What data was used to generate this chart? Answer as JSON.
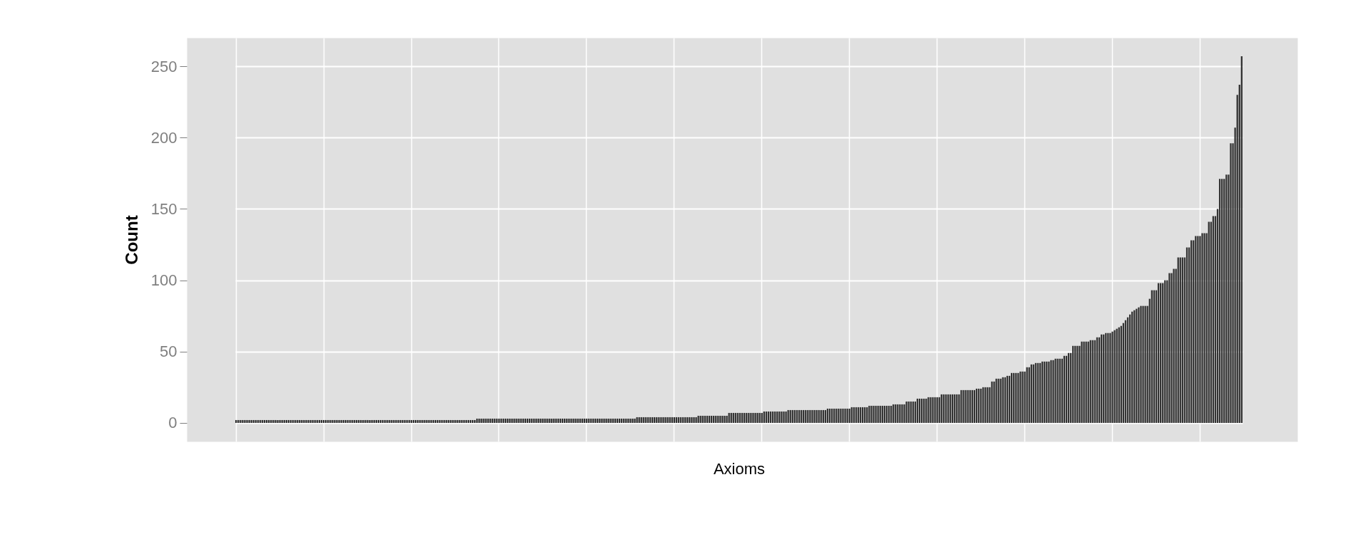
{
  "chart_data": {
    "type": "bar",
    "xlabel": "Axioms",
    "ylabel": "Count",
    "color": "#333333",
    "ylim": [
      -13,
      270
    ],
    "yticks": [
      0,
      50,
      100,
      150,
      200,
      250
    ],
    "grid": true,
    "tick_labels": "y",
    "categories": [
      null,
      null,
      null,
      null,
      null,
      null,
      null,
      null,
      null,
      null,
      null,
      null,
      null,
      null,
      null,
      null,
      null,
      null,
      null,
      null,
      null,
      null,
      null,
      null,
      null,
      null,
      null,
      null,
      null,
      null,
      null,
      null,
      null,
      null,
      null,
      null,
      null,
      null,
      null,
      null,
      null,
      null,
      null,
      null,
      null,
      null,
      null,
      null,
      null,
      null,
      null,
      null,
      null,
      null,
      null,
      null,
      null,
      null,
      null,
      null,
      null,
      null,
      null,
      null,
      null,
      null,
      null,
      null,
      null,
      null,
      null,
      null,
      null,
      null,
      null,
      null,
      null,
      null,
      null,
      null,
      null,
      null,
      null,
      null,
      null,
      null,
      null,
      null,
      null,
      null,
      null,
      null,
      null,
      null,
      null,
      null,
      null,
      null,
      null,
      null,
      null,
      null,
      null,
      null,
      null,
      null,
      null,
      null,
      null,
      null,
      null,
      null,
      null,
      null,
      null,
      null,
      null,
      null,
      null,
      null,
      null,
      null,
      null,
      null,
      null,
      null,
      null,
      null,
      null,
      null,
      null,
      null,
      null,
      null,
      null,
      null,
      null,
      null,
      null,
      null,
      null,
      null,
      null,
      null,
      null,
      null,
      null,
      null,
      null,
      null,
      null,
      null,
      null,
      null,
      null,
      null,
      null,
      null,
      null,
      null,
      null,
      null,
      null,
      null,
      null,
      null,
      null,
      null,
      null,
      null,
      null,
      null,
      null,
      null,
      null,
      null,
      null,
      null,
      null,
      null,
      null,
      null,
      null,
      null,
      null,
      null,
      null,
      null,
      null,
      null,
      null,
      null,
      null,
      null,
      null,
      null,
      null,
      null,
      null,
      null,
      null,
      null,
      null,
      null,
      null,
      null,
      null,
      null,
      null,
      null,
      null,
      null,
      null,
      null,
      null,
      null,
      null,
      null,
      null,
      null,
      null,
      null,
      null,
      null,
      null,
      null,
      null,
      null,
      null,
      null,
      null,
      null,
      null,
      null,
      null,
      null,
      null,
      null,
      null,
      null,
      null,
      null,
      null,
      null,
      null,
      null,
      null,
      null,
      null,
      null,
      null,
      null,
      null,
      null,
      null,
      null,
      null,
      null,
      null,
      null,
      null,
      null,
      null,
      null,
      null,
      null,
      null,
      null,
      null,
      null,
      null,
      null,
      null,
      null,
      null,
      null,
      null,
      null,
      null,
      null,
      null,
      null,
      null,
      null,
      null,
      null,
      null,
      null,
      null,
      null,
      null,
      null,
      null,
      null,
      null,
      null,
      null,
      null,
      null,
      null,
      null,
      null,
      null,
      null,
      null,
      null,
      null,
      null,
      null,
      null,
      null,
      null,
      null,
      null,
      null,
      null,
      null,
      null,
      null,
      null,
      null,
      null,
      null,
      null,
      null,
      null,
      null,
      null,
      null,
      null,
      null,
      null,
      null,
      null,
      null,
      null,
      null,
      null,
      null,
      null,
      null,
      null,
      null,
      null,
      null,
      null,
      null,
      null,
      null,
      null,
      null,
      null,
      null,
      null,
      null,
      null,
      null,
      null,
      null,
      null,
      null,
      null,
      null,
      null,
      null,
      null,
      null,
      null,
      null,
      null,
      null,
      null,
      null,
      null,
      null,
      null,
      null,
      null,
      null,
      null,
      null,
      null,
      null,
      null,
      null,
      null,
      null,
      null,
      null,
      null,
      null,
      null,
      null,
      null,
      null,
      null,
      null,
      null,
      null,
      null,
      null,
      null,
      null,
      null,
      null,
      null,
      null,
      null,
      null,
      null,
      null,
      null,
      null,
      null,
      null,
      null,
      null,
      null,
      null,
      null,
      null,
      null,
      null,
      null,
      null,
      null,
      null,
      null,
      null,
      null,
      null,
      null,
      null,
      null,
      null,
      null,
      null,
      null,
      null,
      null,
      null,
      null,
      null,
      null,
      null,
      null,
      null,
      null,
      null,
      null,
      null,
      null,
      null,
      null,
      null,
      null,
      null,
      null,
      null,
      null
    ],
    "values": [
      2,
      2,
      2,
      2,
      2,
      2,
      2,
      2,
      2,
      2,
      2,
      2,
      2,
      2,
      2,
      2,
      2,
      2,
      2,
      2,
      2,
      2,
      2,
      2,
      2,
      2,
      2,
      2,
      2,
      2,
      2,
      2,
      2,
      2,
      2,
      2,
      2,
      2,
      2,
      2,
      2,
      2,
      2,
      2,
      2,
      2,
      2,
      2,
      2,
      2,
      2,
      2,
      2,
      2,
      2,
      2,
      2,
      2,
      2,
      2,
      2,
      2,
      2,
      2,
      2,
      2,
      2,
      2,
      2,
      2,
      2,
      2,
      2,
      2,
      2,
      2,
      2,
      2,
      2,
      2,
      2,
      2,
      2,
      2,
      2,
      2,
      2,
      2,
      2,
      2,
      2,
      2,
      2,
      2,
      2,
      2,
      2,
      2,
      2,
      2,
      2,
      2,
      2,
      2,
      2,
      2,
      2,
      2,
      2,
      2,
      3,
      3,
      3,
      3,
      3,
      3,
      3,
      3,
      3,
      3,
      3,
      3,
      3,
      3,
      3,
      3,
      3,
      3,
      3,
      3,
      3,
      3,
      3,
      3,
      3,
      3,
      3,
      3,
      3,
      3,
      3,
      3,
      3,
      3,
      3,
      3,
      3,
      3,
      3,
      3,
      3,
      3,
      3,
      3,
      3,
      3,
      3,
      3,
      3,
      3,
      3,
      3,
      3,
      3,
      3,
      3,
      3,
      3,
      3,
      3,
      3,
      3,
      3,
      3,
      3,
      3,
      3,
      3,
      3,
      3,
      3,
      3,
      3,
      4,
      4,
      4,
      4,
      4,
      4,
      4,
      4,
      4,
      4,
      4,
      4,
      4,
      4,
      4,
      4,
      4,
      4,
      4,
      4,
      4,
      4,
      4,
      4,
      4,
      4,
      4,
      4,
      5,
      5,
      5,
      5,
      5,
      5,
      5,
      5,
      5,
      5,
      5,
      5,
      5,
      5,
      7,
      7,
      7,
      7,
      7,
      7,
      7,
      7,
      7,
      7,
      7,
      7,
      7,
      7,
      7,
      7,
      8,
      8,
      8,
      8,
      8,
      8,
      8,
      8,
      8,
      8,
      8,
      9,
      9,
      9,
      9,
      9,
      9,
      9,
      9,
      9,
      9,
      9,
      9,
      9,
      9,
      9,
      9,
      9,
      9,
      10,
      10,
      10,
      10,
      10,
      10,
      10,
      10,
      10,
      10,
      10,
      11,
      11,
      11,
      11,
      11,
      11,
      11,
      11,
      12,
      12,
      12,
      12,
      12,
      12,
      12,
      12,
      12,
      12,
      12,
      13,
      13,
      13,
      13,
      13,
      13,
      15,
      15,
      15,
      15,
      15,
      17,
      17,
      17,
      17,
      17,
      18,
      18,
      18,
      18,
      18,
      18,
      20,
      20,
      20,
      20,
      20,
      20,
      20,
      20,
      20,
      23,
      23,
      23,
      23,
      23,
      23,
      23,
      24,
      24,
      24,
      25,
      25,
      25,
      25,
      29,
      29,
      31,
      31,
      31,
      32,
      32,
      33,
      33,
      35,
      35,
      35,
      35,
      36,
      36,
      36,
      39,
      39,
      41,
      41,
      42,
      42,
      42,
      43,
      43,
      43,
      43,
      44,
      44,
      45,
      45,
      45,
      45,
      47,
      47,
      49,
      49,
      54,
      54,
      54,
      54,
      57,
      57,
      57,
      57,
      58,
      58,
      58,
      60,
      60,
      62,
      62,
      63,
      63,
      63,
      64,
      65,
      66,
      67,
      68,
      70,
      72,
      74,
      76,
      78,
      79,
      80,
      81,
      82,
      82,
      82,
      82,
      87,
      93,
      93,
      93,
      98,
      98,
      98,
      100,
      100,
      105,
      105,
      108,
      108,
      116,
      116,
      116,
      116,
      123,
      123,
      128,
      128,
      131,
      131,
      131,
      133,
      133,
      133,
      141,
      141,
      145,
      145,
      150,
      171,
      171,
      171,
      174,
      174,
      196,
      196,
      207,
      230,
      237,
      257
    ]
  }
}
